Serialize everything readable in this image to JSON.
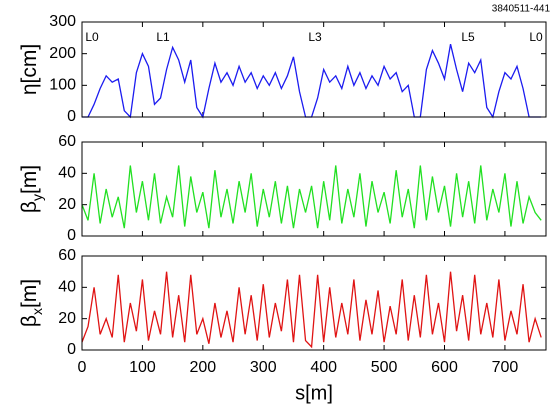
{
  "figure_id": "3840511-441",
  "chart_data": [
    {
      "type": "line",
      "ylabel": [
        "η[cm]"
      ],
      "ylim": [
        0,
        300
      ],
      "yticks": [
        0,
        100,
        200,
        300
      ],
      "xlim": [
        0,
        768
      ],
      "annotations": [
        "L0",
        "L1",
        "L3",
        "L5",
        "L0"
      ],
      "x": [
        0,
        10,
        20,
        30,
        40,
        50,
        60,
        70,
        80,
        90,
        100,
        110,
        120,
        130,
        140,
        150,
        160,
        170,
        180,
        190,
        200,
        210,
        220,
        230,
        240,
        250,
        260,
        270,
        280,
        290,
        300,
        310,
        320,
        330,
        340,
        350,
        360,
        370,
        380,
        390,
        400,
        410,
        420,
        430,
        440,
        450,
        460,
        470,
        480,
        490,
        500,
        510,
        520,
        530,
        540,
        550,
        560,
        570,
        580,
        590,
        600,
        610,
        620,
        630,
        640,
        650,
        660,
        670,
        680,
        690,
        700,
        710,
        720,
        730,
        740,
        750,
        760
      ],
      "series": [
        {
          "color": "#1c1cf0",
          "values": [
            0,
            0,
            40,
            90,
            130,
            110,
            120,
            20,
            0,
            140,
            200,
            160,
            40,
            60,
            150,
            220,
            180,
            110,
            180,
            30,
            0,
            90,
            170,
            110,
            140,
            100,
            160,
            110,
            140,
            90,
            130,
            100,
            140,
            90,
            130,
            190,
            80,
            0,
            0,
            60,
            150,
            110,
            130,
            90,
            160,
            100,
            140,
            90,
            130,
            100,
            160,
            120,
            140,
            80,
            100,
            0,
            0,
            150,
            210,
            170,
            120,
            230,
            150,
            80,
            170,
            140,
            180,
            30,
            0,
            80,
            140,
            120,
            160,
            90,
            0,
            0,
            0
          ]
        }
      ]
    },
    {
      "type": "line",
      "ylabel": [
        "β",
        "y",
        "[m]"
      ],
      "ylim": [
        0,
        60
      ],
      "yticks": [
        0,
        20,
        40,
        60
      ],
      "xlim": [
        0,
        768
      ],
      "x": [
        0,
        10,
        20,
        30,
        40,
        50,
        60,
        70,
        80,
        90,
        100,
        110,
        120,
        130,
        140,
        150,
        160,
        170,
        180,
        190,
        200,
        210,
        220,
        230,
        240,
        250,
        260,
        270,
        280,
        290,
        300,
        310,
        320,
        330,
        340,
        350,
        360,
        370,
        380,
        390,
        400,
        410,
        420,
        430,
        440,
        450,
        460,
        470,
        480,
        490,
        500,
        510,
        520,
        530,
        540,
        550,
        560,
        570,
        580,
        590,
        600,
        610,
        620,
        630,
        640,
        650,
        660,
        670,
        680,
        690,
        700,
        710,
        720,
        730,
        740,
        750,
        760
      ],
      "series": [
        {
          "color": "#22e022",
          "values": [
            20,
            10,
            40,
            8,
            30,
            12,
            25,
            5,
            45,
            15,
            35,
            10,
            40,
            8,
            25,
            12,
            45,
            6,
            38,
            15,
            28,
            5,
            42,
            12,
            30,
            8,
            35,
            15,
            40,
            6,
            30,
            12,
            35,
            8,
            32,
            5,
            30,
            15,
            32,
            5,
            35,
            10,
            45,
            8,
            30,
            12,
            40,
            6,
            35,
            15,
            28,
            8,
            42,
            12,
            30,
            5,
            45,
            10,
            38,
            15,
            32,
            6,
            40,
            12,
            35,
            8,
            45,
            10,
            30,
            15,
            40,
            6,
            35,
            8,
            25,
            15,
            10
          ]
        }
      ]
    },
    {
      "type": "line",
      "ylabel": [
        "β",
        "x",
        "[m]"
      ],
      "ylim": [
        0,
        60
      ],
      "yticks": [
        0,
        20,
        40,
        60
      ],
      "xlim": [
        0,
        768
      ],
      "xlabel": "s[m]",
      "xticks": [
        0,
        100,
        200,
        300,
        400,
        500,
        600,
        700
      ],
      "x": [
        0,
        10,
        20,
        30,
        40,
        50,
        60,
        70,
        80,
        90,
        100,
        110,
        120,
        130,
        140,
        150,
        160,
        170,
        180,
        190,
        200,
        210,
        220,
        230,
        240,
        250,
        260,
        270,
        280,
        290,
        300,
        310,
        320,
        330,
        340,
        350,
        360,
        370,
        380,
        390,
        400,
        410,
        420,
        430,
        440,
        450,
        460,
        470,
        480,
        490,
        500,
        510,
        520,
        530,
        540,
        550,
        560,
        570,
        580,
        590,
        600,
        610,
        620,
        630,
        640,
        650,
        660,
        670,
        680,
        690,
        700,
        710,
        720,
        730,
        740,
        750,
        760
      ],
      "series": [
        {
          "color": "#e01414",
          "values": [
            5,
            15,
            40,
            10,
            20,
            8,
            48,
            5,
            30,
            12,
            45,
            6,
            25,
            10,
            50,
            8,
            35,
            5,
            48,
            10,
            20,
            4,
            30,
            8,
            25,
            5,
            40,
            10,
            35,
            6,
            42,
            8,
            30,
            12,
            45,
            5,
            48,
            6,
            2,
            48,
            5,
            40,
            8,
            30,
            10,
            45,
            6,
            32,
            10,
            38,
            5,
            28,
            10,
            45,
            6,
            35,
            8,
            48,
            10,
            30,
            5,
            50,
            12,
            35,
            6,
            48,
            10,
            30,
            8,
            45,
            6,
            25,
            10,
            42,
            5,
            20,
            8
          ]
        }
      ]
    }
  ]
}
